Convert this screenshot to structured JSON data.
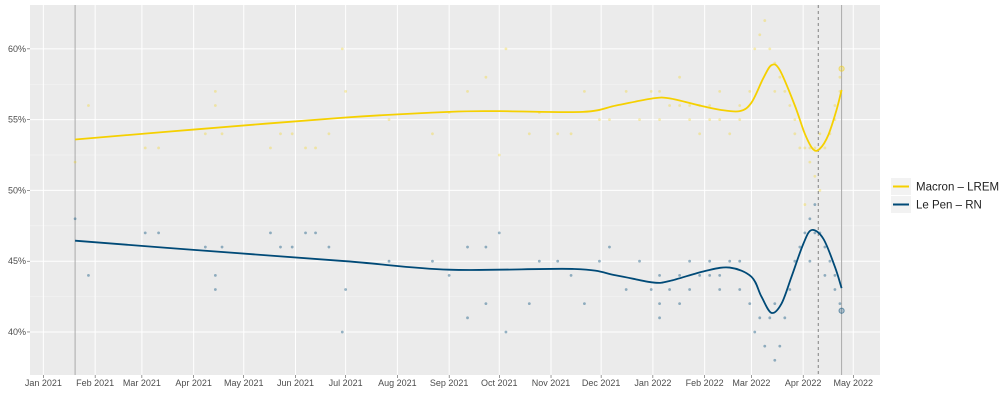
{
  "chart_data": {
    "type": "scatter",
    "title": "",
    "xlabel": "",
    "ylabel": "",
    "xlim": [
      "2020-12-24",
      "2022-05-17"
    ],
    "ylim": [
      36.96,
      63.1
    ],
    "x_ticks": [
      {
        "date": "2021-01-01",
        "label": "Jan 2021"
      },
      {
        "date": "2021-02-01",
        "label": "Feb 2021"
      },
      {
        "date": "2021-03-01",
        "label": "Mar 2021"
      },
      {
        "date": "2021-04-01",
        "label": "Apr 2021"
      },
      {
        "date": "2021-05-01",
        "label": "May 2021"
      },
      {
        "date": "2021-06-01",
        "label": "Jun 2021"
      },
      {
        "date": "2021-07-01",
        "label": "Jul 2021"
      },
      {
        "date": "2021-08-01",
        "label": "Aug 2021"
      },
      {
        "date": "2021-09-01",
        "label": "Sep 2021"
      },
      {
        "date": "2021-10-01",
        "label": "Oct 2021"
      },
      {
        "date": "2021-11-01",
        "label": "Nov 2021"
      },
      {
        "date": "2021-12-01",
        "label": "Dec 2021"
      },
      {
        "date": "2022-01-01",
        "label": "Jan 2022"
      },
      {
        "date": "2022-02-01",
        "label": "Feb 2022"
      },
      {
        "date": "2022-03-01",
        "label": "Mar 2022"
      },
      {
        "date": "2022-04-01",
        "label": "Apr 2022"
      },
      {
        "date": "2022-05-01",
        "label": "May 2022"
      }
    ],
    "y_ticks": [
      {
        "value": 40,
        "label": "40%"
      },
      {
        "value": 45,
        "label": "45%"
      },
      {
        "value": 50,
        "label": "50%"
      },
      {
        "value": 55,
        "label": "55%"
      },
      {
        "value": 60,
        "label": "60%"
      }
    ],
    "grid": true,
    "legend_position": "right",
    "vertical_lines": [
      {
        "date": "2021-01-20",
        "style": "solid"
      },
      {
        "date": "2022-04-10",
        "style": "dashed"
      },
      {
        "date": "2022-04-24",
        "style": "solid"
      }
    ],
    "series": [
      {
        "name": "Macron – LREM",
        "color": "#f5d000",
        "smooth": [
          [
            "2021-01-20",
            53.6
          ],
          [
            "2021-04-01",
            54.3
          ],
          [
            "2021-07-01",
            55.15
          ],
          [
            "2021-09-01",
            55.55
          ],
          [
            "2021-10-01",
            55.6
          ],
          [
            "2021-11-20",
            55.55
          ],
          [
            "2021-12-10",
            56.0
          ],
          [
            "2022-01-01",
            56.5
          ],
          [
            "2022-01-11",
            56.5
          ],
          [
            "2022-01-29",
            56.0
          ],
          [
            "2022-02-10",
            55.7
          ],
          [
            "2022-02-22",
            55.6
          ],
          [
            "2022-03-01",
            56.2
          ],
          [
            "2022-03-08",
            57.9
          ],
          [
            "2022-03-13",
            58.85
          ],
          [
            "2022-03-18",
            58.5
          ],
          [
            "2022-03-27",
            56.0
          ],
          [
            "2022-04-02",
            54.0
          ],
          [
            "2022-04-07",
            52.9
          ],
          [
            "2022-04-11",
            52.95
          ],
          [
            "2022-04-16",
            53.9
          ],
          [
            "2022-04-21",
            55.7
          ],
          [
            "2022-04-24",
            57.1
          ]
        ],
        "points": [
          [
            "2021-01-20",
            52
          ],
          [
            "2021-01-28",
            56
          ],
          [
            "2021-03-03",
            53
          ],
          [
            "2021-03-11",
            53
          ],
          [
            "2021-04-08",
            54
          ],
          [
            "2021-04-14",
            57
          ],
          [
            "2021-04-14",
            56
          ],
          [
            "2021-04-18",
            54
          ],
          [
            "2021-05-17",
            53
          ],
          [
            "2021-05-23",
            54
          ],
          [
            "2021-05-30",
            54
          ],
          [
            "2021-06-07",
            53
          ],
          [
            "2021-06-13",
            53
          ],
          [
            "2021-06-21",
            54
          ],
          [
            "2021-06-29",
            60
          ],
          [
            "2021-07-01",
            57
          ],
          [
            "2021-07-27",
            55
          ],
          [
            "2021-08-22",
            54
          ],
          [
            "2021-09-01",
            55.5
          ],
          [
            "2021-09-12",
            57
          ],
          [
            "2021-09-23",
            58
          ],
          [
            "2021-10-01",
            52.5
          ],
          [
            "2021-10-05",
            60
          ],
          [
            "2021-10-19",
            54
          ],
          [
            "2021-10-25",
            55.5
          ],
          [
            "2021-11-05",
            54
          ],
          [
            "2021-11-13",
            54
          ],
          [
            "2021-11-21",
            57
          ],
          [
            "2021-11-30",
            55
          ],
          [
            "2021-12-06",
            55
          ],
          [
            "2021-12-16",
            57
          ],
          [
            "2021-12-24",
            55
          ],
          [
            "2021-12-31",
            57
          ],
          [
            "2022-01-05",
            57
          ],
          [
            "2022-01-05",
            55
          ],
          [
            "2022-01-11",
            56
          ],
          [
            "2022-01-17",
            56
          ],
          [
            "2022-01-17",
            58
          ],
          [
            "2022-01-23",
            56
          ],
          [
            "2022-01-23",
            55
          ],
          [
            "2022-01-29",
            56
          ],
          [
            "2022-01-29",
            54
          ],
          [
            "2022-02-04",
            56
          ],
          [
            "2022-02-04",
            55
          ],
          [
            "2022-02-10",
            57
          ],
          [
            "2022-02-10",
            55
          ],
          [
            "2022-02-16",
            54
          ],
          [
            "2022-02-22",
            56
          ],
          [
            "2022-02-22",
            55
          ],
          [
            "2022-02-28",
            57
          ],
          [
            "2022-03-03",
            60
          ],
          [
            "2022-03-06",
            61
          ],
          [
            "2022-03-09",
            62
          ],
          [
            "2022-03-12",
            60
          ],
          [
            "2022-03-15",
            59
          ],
          [
            "2022-03-15",
            57
          ],
          [
            "2022-03-18",
            58
          ],
          [
            "2022-03-21",
            57
          ],
          [
            "2022-03-24",
            56
          ],
          [
            "2022-03-27",
            55
          ],
          [
            "2022-03-27",
            54
          ],
          [
            "2022-03-30",
            53
          ],
          [
            "2022-04-02",
            53
          ],
          [
            "2022-04-02",
            49
          ],
          [
            "2022-04-05",
            53
          ],
          [
            "2022-04-05",
            52
          ],
          [
            "2022-04-08",
            51
          ],
          [
            "2022-04-08",
            53
          ],
          [
            "2022-04-11",
            50
          ],
          [
            "2022-04-11",
            54
          ],
          [
            "2022-04-14",
            53
          ],
          [
            "2022-04-17",
            54
          ],
          [
            "2022-04-20",
            55
          ],
          [
            "2022-04-20",
            56
          ],
          [
            "2022-04-23",
            58
          ],
          [
            "2022-04-23",
            57
          ]
        ],
        "result": [
          "2022-04-24",
          58.6
        ]
      },
      {
        "name": "Le Pen – RN",
        "color": "#004a77",
        "smooth": [
          [
            "2021-01-20",
            46.45
          ],
          [
            "2021-04-01",
            45.8
          ],
          [
            "2021-07-01",
            45.0
          ],
          [
            "2021-09-01",
            44.4
          ],
          [
            "2021-11-15",
            44.45
          ],
          [
            "2021-12-10",
            44.0
          ],
          [
            "2022-01-01",
            43.5
          ],
          [
            "2022-01-11",
            43.6
          ],
          [
            "2022-02-01",
            44.3
          ],
          [
            "2022-02-16",
            44.55
          ],
          [
            "2022-03-01",
            43.9
          ],
          [
            "2022-03-07",
            42.5
          ],
          [
            "2022-03-13",
            41.35
          ],
          [
            "2022-03-19",
            42.0
          ],
          [
            "2022-03-25",
            43.9
          ],
          [
            "2022-04-01",
            46.2
          ],
          [
            "2022-04-06",
            47.2
          ],
          [
            "2022-04-13",
            46.6
          ],
          [
            "2022-04-20",
            44.6
          ],
          [
            "2022-04-24",
            43.1
          ]
        ],
        "points": [
          [
            "2021-01-20",
            48
          ],
          [
            "2021-01-28",
            44
          ],
          [
            "2021-03-03",
            47
          ],
          [
            "2021-03-11",
            47
          ],
          [
            "2021-04-08",
            46
          ],
          [
            "2021-04-14",
            44
          ],
          [
            "2021-04-14",
            43
          ],
          [
            "2021-04-18",
            46
          ],
          [
            "2021-05-17",
            47
          ],
          [
            "2021-05-23",
            46
          ],
          [
            "2021-05-30",
            46
          ],
          [
            "2021-06-07",
            47
          ],
          [
            "2021-06-13",
            47
          ],
          [
            "2021-06-21",
            46
          ],
          [
            "2021-06-29",
            40
          ],
          [
            "2021-07-01",
            43
          ],
          [
            "2021-07-27",
            45
          ],
          [
            "2021-08-22",
            45
          ],
          [
            "2021-09-01",
            44
          ],
          [
            "2021-09-12",
            46
          ],
          [
            "2021-09-12",
            41
          ],
          [
            "2021-09-23",
            42
          ],
          [
            "2021-09-23",
            46
          ],
          [
            "2021-10-01",
            47
          ],
          [
            "2021-10-05",
            40
          ],
          [
            "2021-10-19",
            42
          ],
          [
            "2021-10-25",
            45
          ],
          [
            "2021-11-05",
            45
          ],
          [
            "2021-11-13",
            44
          ],
          [
            "2021-11-21",
            42
          ],
          [
            "2021-11-30",
            45
          ],
          [
            "2021-12-06",
            46
          ],
          [
            "2021-12-16",
            43
          ],
          [
            "2021-12-24",
            45
          ],
          [
            "2021-12-31",
            43
          ],
          [
            "2022-01-05",
            42
          ],
          [
            "2022-01-05",
            41
          ],
          [
            "2022-01-05",
            44
          ],
          [
            "2022-01-11",
            43
          ],
          [
            "2022-01-17",
            44
          ],
          [
            "2022-01-17",
            42
          ],
          [
            "2022-01-23",
            45
          ],
          [
            "2022-01-23",
            43
          ],
          [
            "2022-01-29",
            44
          ],
          [
            "2022-02-04",
            44
          ],
          [
            "2022-02-04",
            45
          ],
          [
            "2022-02-10",
            44
          ],
          [
            "2022-02-10",
            43
          ],
          [
            "2022-02-16",
            45
          ],
          [
            "2022-02-22",
            45
          ],
          [
            "2022-02-22",
            43
          ],
          [
            "2022-02-28",
            42
          ],
          [
            "2022-03-03",
            40
          ],
          [
            "2022-03-06",
            41
          ],
          [
            "2022-03-09",
            39
          ],
          [
            "2022-03-12",
            41
          ],
          [
            "2022-03-15",
            38
          ],
          [
            "2022-03-15",
            42
          ],
          [
            "2022-03-18",
            39
          ],
          [
            "2022-03-21",
            41
          ],
          [
            "2022-03-24",
            43
          ],
          [
            "2022-03-27",
            45
          ],
          [
            "2022-03-30",
            46
          ],
          [
            "2022-04-02",
            47
          ],
          [
            "2022-04-05",
            48
          ],
          [
            "2022-04-05",
            45
          ],
          [
            "2022-04-08",
            49
          ],
          [
            "2022-04-08",
            47
          ],
          [
            "2022-04-11",
            47
          ],
          [
            "2022-04-14",
            46
          ],
          [
            "2022-04-14",
            44
          ],
          [
            "2022-04-17",
            45
          ],
          [
            "2022-04-20",
            44
          ],
          [
            "2022-04-20",
            43
          ],
          [
            "2022-04-23",
            42
          ]
        ],
        "result": [
          "2022-04-24",
          41.5
        ]
      }
    ]
  }
}
